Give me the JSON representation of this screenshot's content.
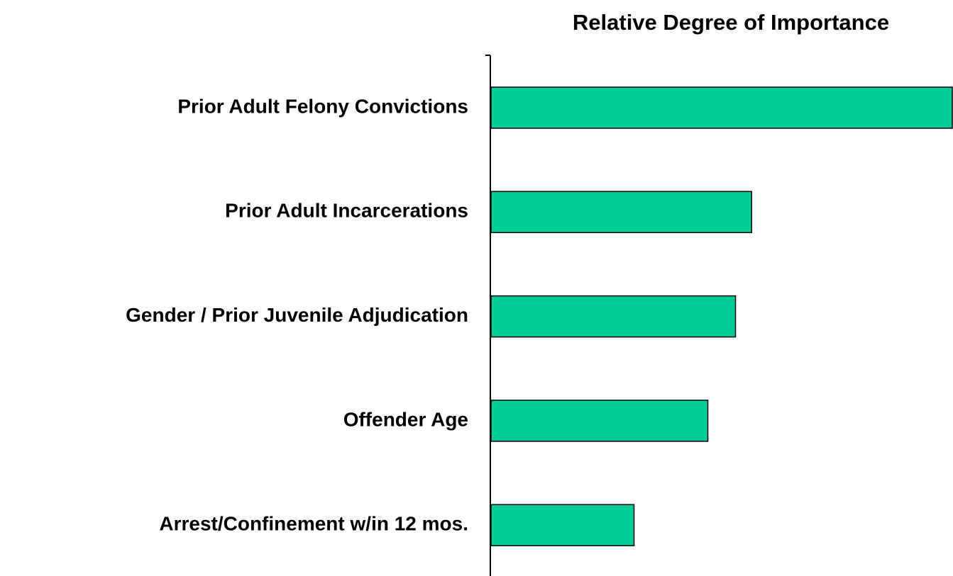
{
  "chart_data": {
    "type": "hbar",
    "title": "Relative Degree of Importance",
    "categories": [
      "Prior Adult Felony Convictions",
      "Prior Adult Incarcerations",
      "Gender / Prior Juvenile Adjudication",
      "Offender Age",
      "Arrest/Confinement w/in 12 mos."
    ],
    "values": [
      100,
      56.5,
      53,
      47,
      31
    ],
    "color": "#00cc99",
    "xlim": [
      0,
      100
    ]
  }
}
